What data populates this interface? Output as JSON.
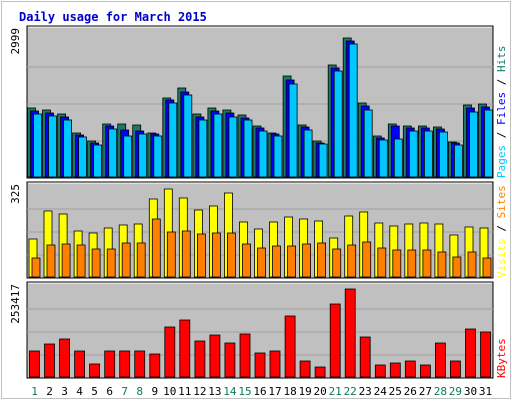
{
  "title": "Daily usage for March 2015",
  "colors": {
    "title": "#0000cc",
    "frame_bg": "#c0c0c0",
    "pages": "#00c8ff",
    "files": "#0000ff",
    "hits": "#1a7a6a",
    "visits": "#ffff00",
    "sites": "#ff8000",
    "kbytes": "#ff0000",
    "weekday_label": "#000000",
    "weekend_label": "#0a7a50",
    "grid": "#a0a0a0"
  },
  "chart_data": [
    {
      "type": "bar",
      "panel": "hits-files-pages",
      "ytick_label": "2999",
      "ymax": 2999,
      "legend": [
        {
          "name": "Pages",
          "color": "#00c8ff"
        },
        {
          "name": "Files",
          "color": "#0000ff"
        },
        {
          "name": "Hits",
          "color": "#1a7a6a"
        }
      ],
      "series": [
        {
          "name": "Hits",
          "values": [
            1438,
            1398,
            1318,
            926,
            746,
            1098,
            1098,
            1078,
            926,
            1639,
            1858,
            1318,
            1438,
            1398,
            1298,
            1058,
            926,
            2098,
            1078,
            746,
            2338,
            2898,
            1538,
            846,
            1098,
            1058,
            1058,
            1038,
            738,
            1498,
            1518
          ]
        },
        {
          "name": "Files",
          "values": [
            1378,
            1338,
            1258,
            876,
            716,
            1058,
            976,
            956,
            886,
            1598,
            1778,
            1258,
            1378,
            1338,
            1238,
            1018,
            886,
            2018,
            1038,
            716,
            2278,
            2838,
            1478,
            806,
            1058,
            1018,
            1018,
            998,
            708,
            1438,
            1458
          ]
        },
        {
          "name": "Pages",
          "values": [
            1318,
            1278,
            1178,
            836,
            676,
            998,
            856,
            896,
            846,
            1538,
            1698,
            1178,
            1318,
            1258,
            1178,
            958,
            846,
            1938,
            978,
            696,
            2198,
            2778,
            1398,
            766,
            796,
            958,
            958,
            938,
            668,
            1358,
            1398
          ]
        }
      ]
    },
    {
      "type": "bar",
      "panel": "visits-sites",
      "ytick_label": "325",
      "ymax": 325,
      "legend": [
        {
          "name": "Visits",
          "color": "#ffff00"
        },
        {
          "name": "Sites",
          "color": "#ff8000"
        }
      ],
      "series": [
        {
          "name": "Visits",
          "values": [
            140,
            242,
            232,
            171,
            164,
            182,
            191,
            195,
            288,
            325,
            291,
            246,
            262,
            310,
            202,
            176,
            203,
            221,
            216,
            208,
            145,
            225,
            240,
            201,
            189,
            194,
            201,
            197,
            155,
            183,
            181
          ]
        },
        {
          "name": "Sites",
          "values": [
            72,
            119,
            122,
            119,
            103,
            105,
            124,
            124,
            216,
            168,
            169,
            158,
            162,
            161,
            123,
            106,
            113,
            116,
            122,
            124,
            105,
            120,
            130,
            108,
            101,
            100,
            100,
            94,
            74,
            94,
            71
          ]
        }
      ]
    },
    {
      "type": "bar",
      "panel": "kbytes",
      "ytick_label": "253417",
      "ymax": 253417,
      "legend": [
        {
          "name": "KBytes",
          "color": "#ff0000"
        }
      ],
      "series": [
        {
          "name": "KBytes",
          "values": [
            76000,
            95000,
            108000,
            76000,
            37000,
            76000,
            76000,
            76000,
            65000,
            145000,
            165000,
            104000,
            120000,
            98000,
            125000,
            70000,
            76000,
            175000,
            46000,
            28000,
            210000,
            253417,
            116000,
            34000,
            40000,
            46000,
            34000,
            98000,
            46000,
            137000,
            131000
          ]
        }
      ]
    }
  ],
  "days": [
    "1",
    "2",
    "3",
    "4",
    "5",
    "6",
    "7",
    "8",
    "9",
    "10",
    "11",
    "12",
    "13",
    "14",
    "15",
    "16",
    "17",
    "18",
    "19",
    "20",
    "21",
    "22",
    "23",
    "24",
    "25",
    "26",
    "27",
    "28",
    "29",
    "30",
    "31"
  ],
  "weekend_days": [
    1,
    7,
    8,
    14,
    15,
    21,
    22,
    28,
    29
  ]
}
